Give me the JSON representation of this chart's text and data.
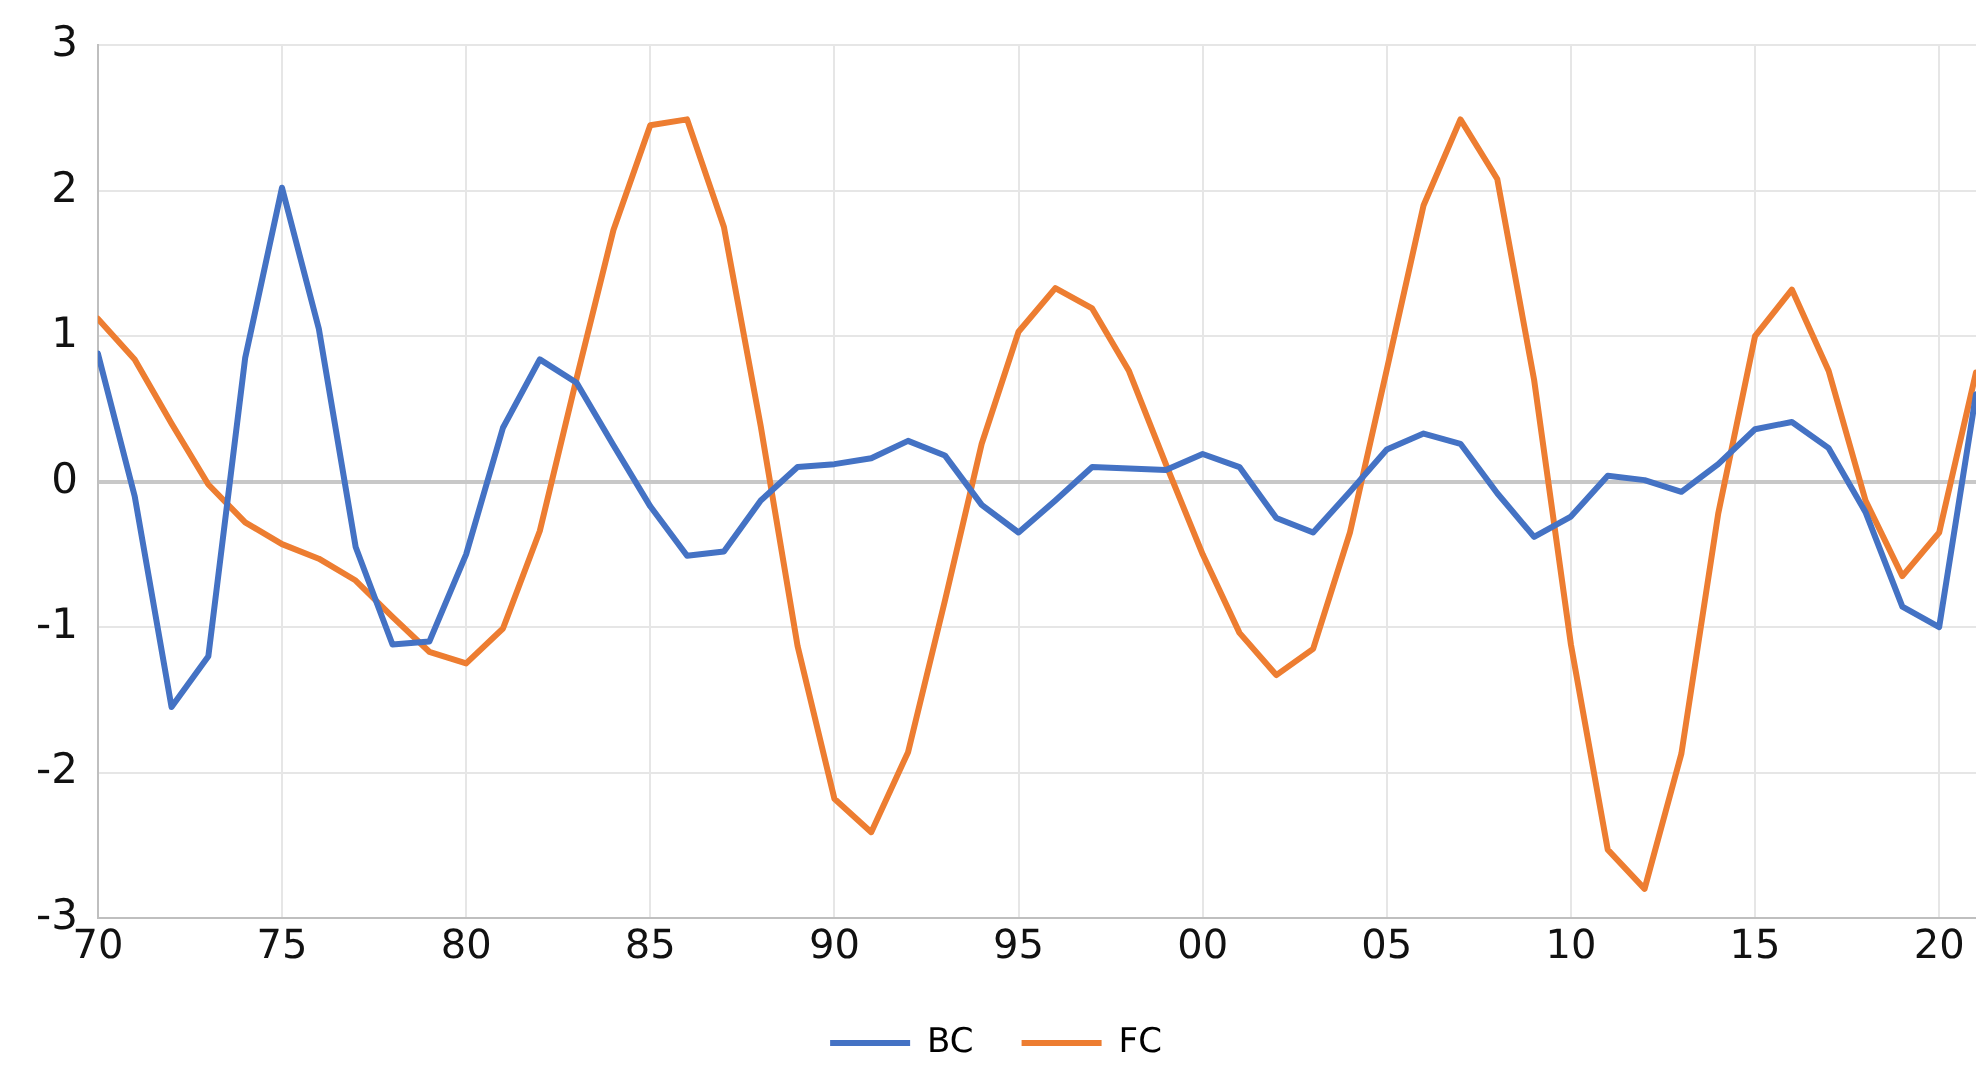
{
  "chart_data": {
    "type": "line",
    "x": [
      1970,
      1971,
      1972,
      1973,
      1974,
      1975,
      1976,
      1977,
      1978,
      1979,
      1980,
      1981,
      1982,
      1983,
      1984,
      1985,
      1986,
      1987,
      1988,
      1989,
      1990,
      1991,
      1992,
      1993,
      1994,
      1995,
      1996,
      1997,
      1998,
      1999,
      2000,
      2001,
      2002,
      2003,
      2004,
      2005,
      2006,
      2007,
      2008,
      2009,
      2010,
      2011,
      2012,
      2013,
      2014,
      2015,
      2016,
      2017,
      2018,
      2019,
      2020,
      2021
    ],
    "series": [
      {
        "name": "BC",
        "color": "#4472c4",
        "values": [
          0.88,
          -0.1,
          -1.55,
          -1.2,
          0.85,
          2.02,
          1.05,
          -0.45,
          -1.12,
          -1.1,
          -0.5,
          0.37,
          0.84,
          0.68,
          0.25,
          -0.17,
          -0.51,
          -0.48,
          -0.13,
          0.1,
          0.12,
          0.16,
          0.28,
          0.18,
          -0.16,
          -0.35,
          -0.13,
          0.1,
          0.09,
          0.08,
          0.19,
          0.1,
          -0.25,
          -0.35,
          -0.07,
          0.22,
          0.33,
          0.26,
          -0.08,
          -0.38,
          -0.24,
          0.04,
          0.01,
          -0.07,
          0.12,
          0.36,
          0.41,
          0.23,
          -0.21,
          -0.86,
          -1.0,
          0.6
        ]
      },
      {
        "name": "FC",
        "color": "#ed7d31",
        "values": [
          1.12,
          0.84,
          0.4,
          -0.02,
          -0.28,
          -0.43,
          -0.53,
          -0.68,
          -0.93,
          -1.17,
          -1.25,
          -1.01,
          -0.34,
          0.71,
          1.73,
          2.45,
          2.49,
          1.75,
          0.38,
          -1.13,
          -2.18,
          -2.41,
          -1.86,
          -0.82,
          0.26,
          1.03,
          1.33,
          1.19,
          0.76,
          0.12,
          -0.5,
          -1.04,
          -1.33,
          -1.15,
          -0.35,
          0.77,
          1.9,
          2.49,
          2.08,
          0.7,
          -1.12,
          -2.53,
          -2.8,
          -1.87,
          -0.22,
          1.0,
          1.32,
          0.76,
          -0.13,
          -0.65,
          -0.35,
          0.75
        ]
      }
    ],
    "xlim": [
      1970,
      2021
    ],
    "xticks": [
      {
        "value": 1970,
        "label": "70"
      },
      {
        "value": 1975,
        "label": "75"
      },
      {
        "value": 1980,
        "label": "80"
      },
      {
        "value": 1985,
        "label": "85"
      },
      {
        "value": 1990,
        "label": "90"
      },
      {
        "value": 1995,
        "label": "95"
      },
      {
        "value": 2000,
        "label": "00"
      },
      {
        "value": 2005,
        "label": "05"
      },
      {
        "value": 2010,
        "label": "10"
      },
      {
        "value": 2015,
        "label": "15"
      },
      {
        "value": 2020,
        "label": "20"
      }
    ],
    "ylim": [
      -3,
      3
    ],
    "yticks": [
      -3,
      -2,
      -1,
      0,
      1,
      2,
      3
    ],
    "grid": true,
    "legend": "bottom",
    "marker": "none",
    "line_style": "solid"
  }
}
